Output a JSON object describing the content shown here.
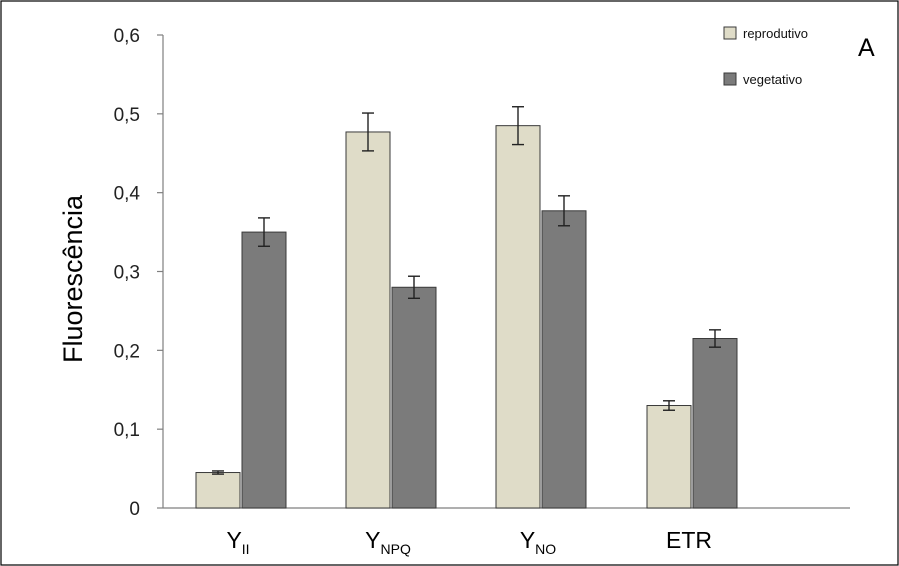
{
  "chart_data": {
    "type": "bar",
    "panel_label": "A",
    "ylabel": "Fluorescência",
    "xlabel": "",
    "ylim": [
      0,
      0.6
    ],
    "y_ticks": [
      "0",
      "0,1",
      "0,2",
      "0,3",
      "0,4",
      "0,5",
      "0,6"
    ],
    "y_tick_values": [
      0,
      0.1,
      0.2,
      0.3,
      0.4,
      0.5,
      0.6
    ],
    "categories": [
      {
        "main": "Y",
        "sub": "II"
      },
      {
        "main": "Y",
        "sub": "NPQ"
      },
      {
        "main": "Y",
        "sub": "NO"
      },
      {
        "main": "ETR",
        "sub": ""
      }
    ],
    "series": [
      {
        "name": "reprodutivo",
        "color": "#dfdcc8",
        "values": [
          0.045,
          0.477,
          0.485,
          0.13
        ],
        "errors": [
          0.002,
          0.024,
          0.024,
          0.006
        ]
      },
      {
        "name": "vegetativo",
        "color": "#7b7b7b",
        "values": [
          0.35,
          0.28,
          0.377,
          0.215
        ],
        "errors": [
          0.018,
          0.014,
          0.019,
          0.011
        ]
      }
    ],
    "legend_position": "top-right",
    "grid": false
  }
}
